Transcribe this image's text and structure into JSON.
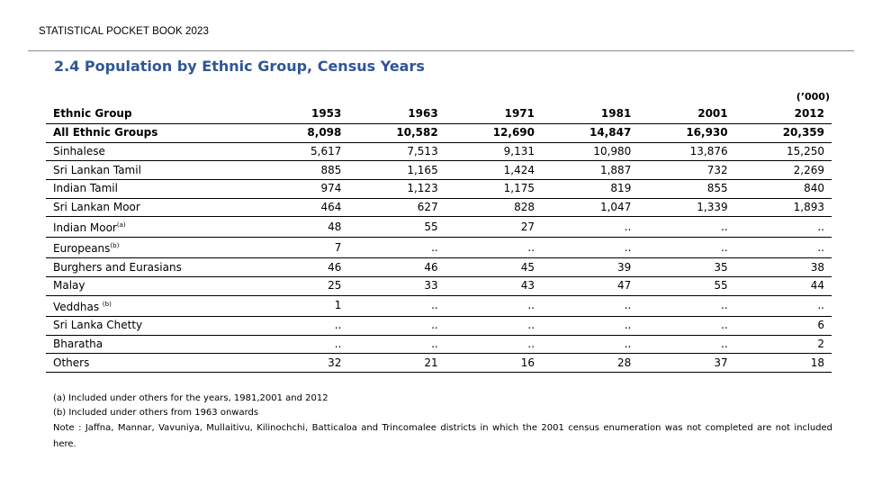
{
  "header": "STATISTICAL POCKET BOOK 2023",
  "title": "2.4 Population by Ethnic Group, Census Years",
  "unit": "(’000)",
  "table": {
    "columns": [
      "Ethnic Group",
      "1953",
      "1963",
      "1971",
      "1981",
      "2001",
      "2012"
    ],
    "rows": [
      {
        "label": "All Ethnic Groups",
        "sup": "",
        "values": [
          "8,098",
          "10,582",
          "12,690",
          "14,847",
          "16,930",
          "20,359"
        ]
      },
      {
        "label": "Sinhalese",
        "sup": "",
        "values": [
          "5,617",
          "7,513",
          "9,131",
          "10,980",
          "13,876",
          "15,250"
        ]
      },
      {
        "label": "Sri Lankan Tamil",
        "sup": "",
        "values": [
          "885",
          "1,165",
          "1,424",
          "1,887",
          "732",
          "2,269"
        ]
      },
      {
        "label": "Indian  Tamil",
        "sup": "",
        "values": [
          "974",
          "1,123",
          "1,175",
          "819",
          "855",
          "840"
        ]
      },
      {
        "label": "Sri Lankan Moor",
        "sup": "",
        "values": [
          "464",
          "627",
          "828",
          "1,047",
          "1,339",
          "1,893"
        ]
      },
      {
        "label": "Indian Moor",
        "sup": "(a)",
        "values": [
          "48",
          "55",
          "27",
          "..",
          "..",
          ".."
        ]
      },
      {
        "label": "Europeans",
        "sup": "(b)",
        "values": [
          "7",
          "..",
          "..",
          "..",
          "..",
          ".."
        ]
      },
      {
        "label": "Burghers and Eurasians",
        "sup": "",
        "values": [
          "46",
          "46",
          "45",
          "39",
          "35",
          "38"
        ]
      },
      {
        "label": "Malay",
        "sup": "",
        "values": [
          "25",
          "33",
          "43",
          "47",
          "55",
          "44"
        ]
      },
      {
        "label": "Veddhas ",
        "sup": "(b)",
        "values": [
          "1",
          "..",
          "..",
          "..",
          "..",
          ".."
        ]
      },
      {
        "label": "Sri Lanka Chetty",
        "sup": "",
        "values": [
          "..",
          "..",
          "..",
          "..",
          "..",
          "6"
        ]
      },
      {
        "label": "Bharatha",
        "sup": "",
        "values": [
          "..",
          "..",
          "..",
          "..",
          "..",
          "2"
        ]
      },
      {
        "label": "Others",
        "sup": "",
        "values": [
          "32",
          "21",
          "16",
          "28",
          "37",
          "18"
        ]
      }
    ]
  },
  "notes": {
    "a": "(a) Included  under others for the years, 1981,2001 and 2012",
    "b": "(b) Included  under others from 1963 onwards",
    "note": "Note :   Jaffna, Mannar, Vavuniya, Mullaitivu, Kilinochchi, Batticaloa and Trincomalee districts in which  the  2001 census enumeration was not completed are not included here."
  }
}
